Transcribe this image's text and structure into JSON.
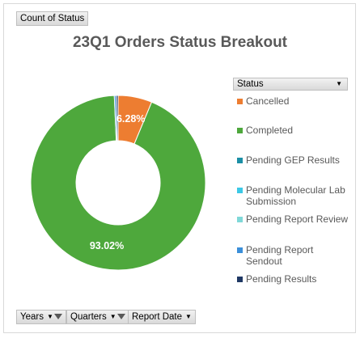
{
  "pivot_value_button": "Count of Status",
  "filters": {
    "years": "Years",
    "quarters": "Quarters",
    "report_date": "Report Date"
  },
  "legend_header": "Status",
  "chart_data": {
    "type": "pie",
    "variant": "donut",
    "title": "23Q1 Orders Status Breakout",
    "categories": [
      "Cancelled",
      "Completed",
      "Pending GEP Results",
      "Pending Molecular Lab Submission",
      "Pending Report Review",
      "Pending Report Sendout",
      "Pending Results"
    ],
    "values": [
      6.28,
      93.02,
      0.0,
      0.0,
      0.0,
      0.35,
      0.35
    ],
    "data_labels": [
      "6.28%",
      "93.02%",
      "",
      "",
      "",
      "",
      ""
    ],
    "colors": [
      "#ed7d31",
      "#4ea83c",
      "#1b8fa6",
      "#3cc8e6",
      "#7fd8d8",
      "#3b8fd9",
      "#1f3864"
    ],
    "legend_position": "right"
  }
}
